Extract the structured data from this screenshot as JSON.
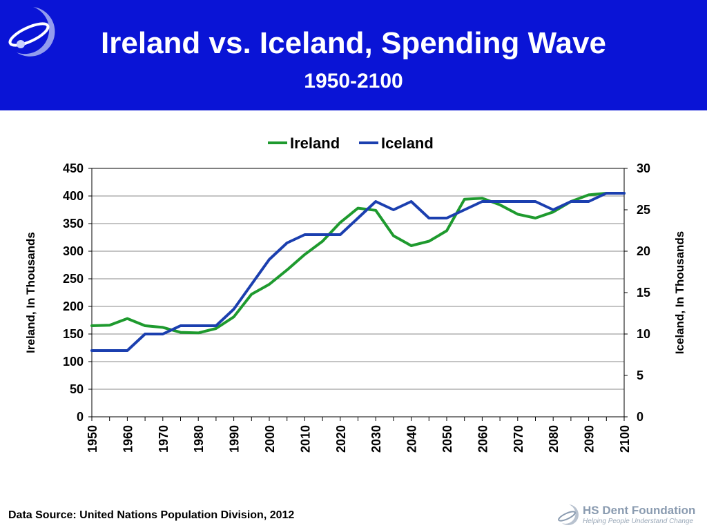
{
  "header": {
    "title": "Ireland vs. Iceland, Spending Wave",
    "subtitle": "1950-2100"
  },
  "footer": {
    "source": "Data Source: United Nations Population Division, 2012",
    "logo_name": "HS Dent Foundation",
    "logo_tagline": "Helping People Understand Change"
  },
  "colors": {
    "header_bg": "#0a14d6",
    "ireland": "#1e9a2e",
    "iceland": "#1b3faf"
  },
  "chart_data": {
    "type": "line",
    "title": "",
    "xlabel": "",
    "ylabel": "Ireland, In Thousands",
    "y2label": "Iceland, In Thousands",
    "xlim": [
      1950,
      2100
    ],
    "ylim": [
      0,
      450
    ],
    "y2lim": [
      0,
      30
    ],
    "x_ticks": [
      1950,
      1960,
      1970,
      1980,
      1990,
      2000,
      2010,
      2020,
      2030,
      2040,
      2050,
      2060,
      2070,
      2080,
      2090,
      2100
    ],
    "y_ticks": [
      0,
      50,
      100,
      150,
      200,
      250,
      300,
      350,
      400,
      450
    ],
    "y2_ticks": [
      0,
      5,
      10,
      15,
      20,
      25,
      30
    ],
    "grid": "horizontal",
    "legend": "top",
    "x": [
      1950,
      1955,
      1960,
      1965,
      1970,
      1975,
      1980,
      1985,
      1990,
      1995,
      2000,
      2005,
      2010,
      2015,
      2020,
      2025,
      2030,
      2035,
      2040,
      2045,
      2050,
      2055,
      2060,
      2065,
      2070,
      2075,
      2080,
      2085,
      2090,
      2095,
      2100
    ],
    "series": [
      {
        "name": "Ireland",
        "axis": "left",
        "color": "#1e9a2e",
        "values": [
          165,
          166,
          178,
          165,
          162,
          153,
          152,
          160,
          181,
          222,
          240,
          266,
          294,
          318,
          352,
          378,
          374,
          328,
          310,
          318,
          337,
          394,
          396,
          384,
          367,
          360,
          371,
          390,
          402,
          405,
          405
        ]
      },
      {
        "name": "Iceland",
        "axis": "right",
        "color": "#1b3faf",
        "values": [
          8,
          8,
          8,
          10,
          10,
          11,
          11,
          11,
          13,
          16,
          19,
          21,
          22,
          22,
          22,
          24,
          26,
          25,
          26,
          24,
          24,
          25,
          26,
          26,
          26,
          26,
          25,
          26,
          26,
          27,
          27
        ]
      }
    ]
  }
}
